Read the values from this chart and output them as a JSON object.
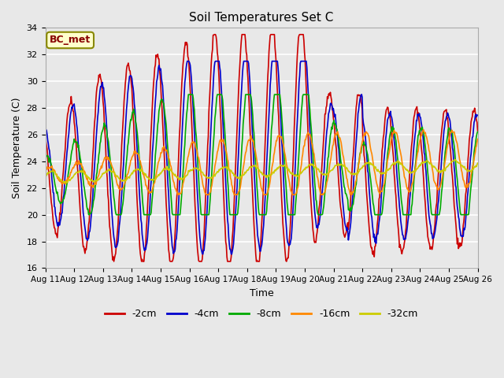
{
  "title": "Soil Temperatures Set C",
  "xlabel": "Time",
  "ylabel": "Soil Temperature (C)",
  "ylim": [
    16,
    34
  ],
  "xlim": [
    0,
    360
  ],
  "xtick_labels": [
    "Aug 11",
    "Aug 12",
    "Aug 13",
    "Aug 14",
    "Aug 15",
    "Aug 16",
    "Aug 17",
    "Aug 18",
    "Aug 19",
    "Aug 20",
    "Aug 21",
    "Aug 22",
    "Aug 23",
    "Aug 24",
    "Aug 25",
    "Aug 26"
  ],
  "xtick_positions": [
    0,
    24,
    48,
    72,
    96,
    120,
    144,
    168,
    192,
    216,
    240,
    264,
    288,
    312,
    336,
    360
  ],
  "legend_label": "BC_met",
  "colors": {
    "neg2cm": "#CC0000",
    "neg4cm": "#0000CC",
    "neg8cm": "#00AA00",
    "neg16cm": "#FF8800",
    "neg32cm": "#CCCC00"
  },
  "series_labels": [
    "-2cm",
    "-4cm",
    "-8cm",
    "-16cm",
    "-32cm"
  ],
  "fig_bg_color": "#e8e8e8",
  "plot_bg_color": "#e8e8e8",
  "grid_color": "#ffffff",
  "yticks": [
    16,
    18,
    20,
    22,
    24,
    26,
    28,
    30,
    32,
    34
  ]
}
